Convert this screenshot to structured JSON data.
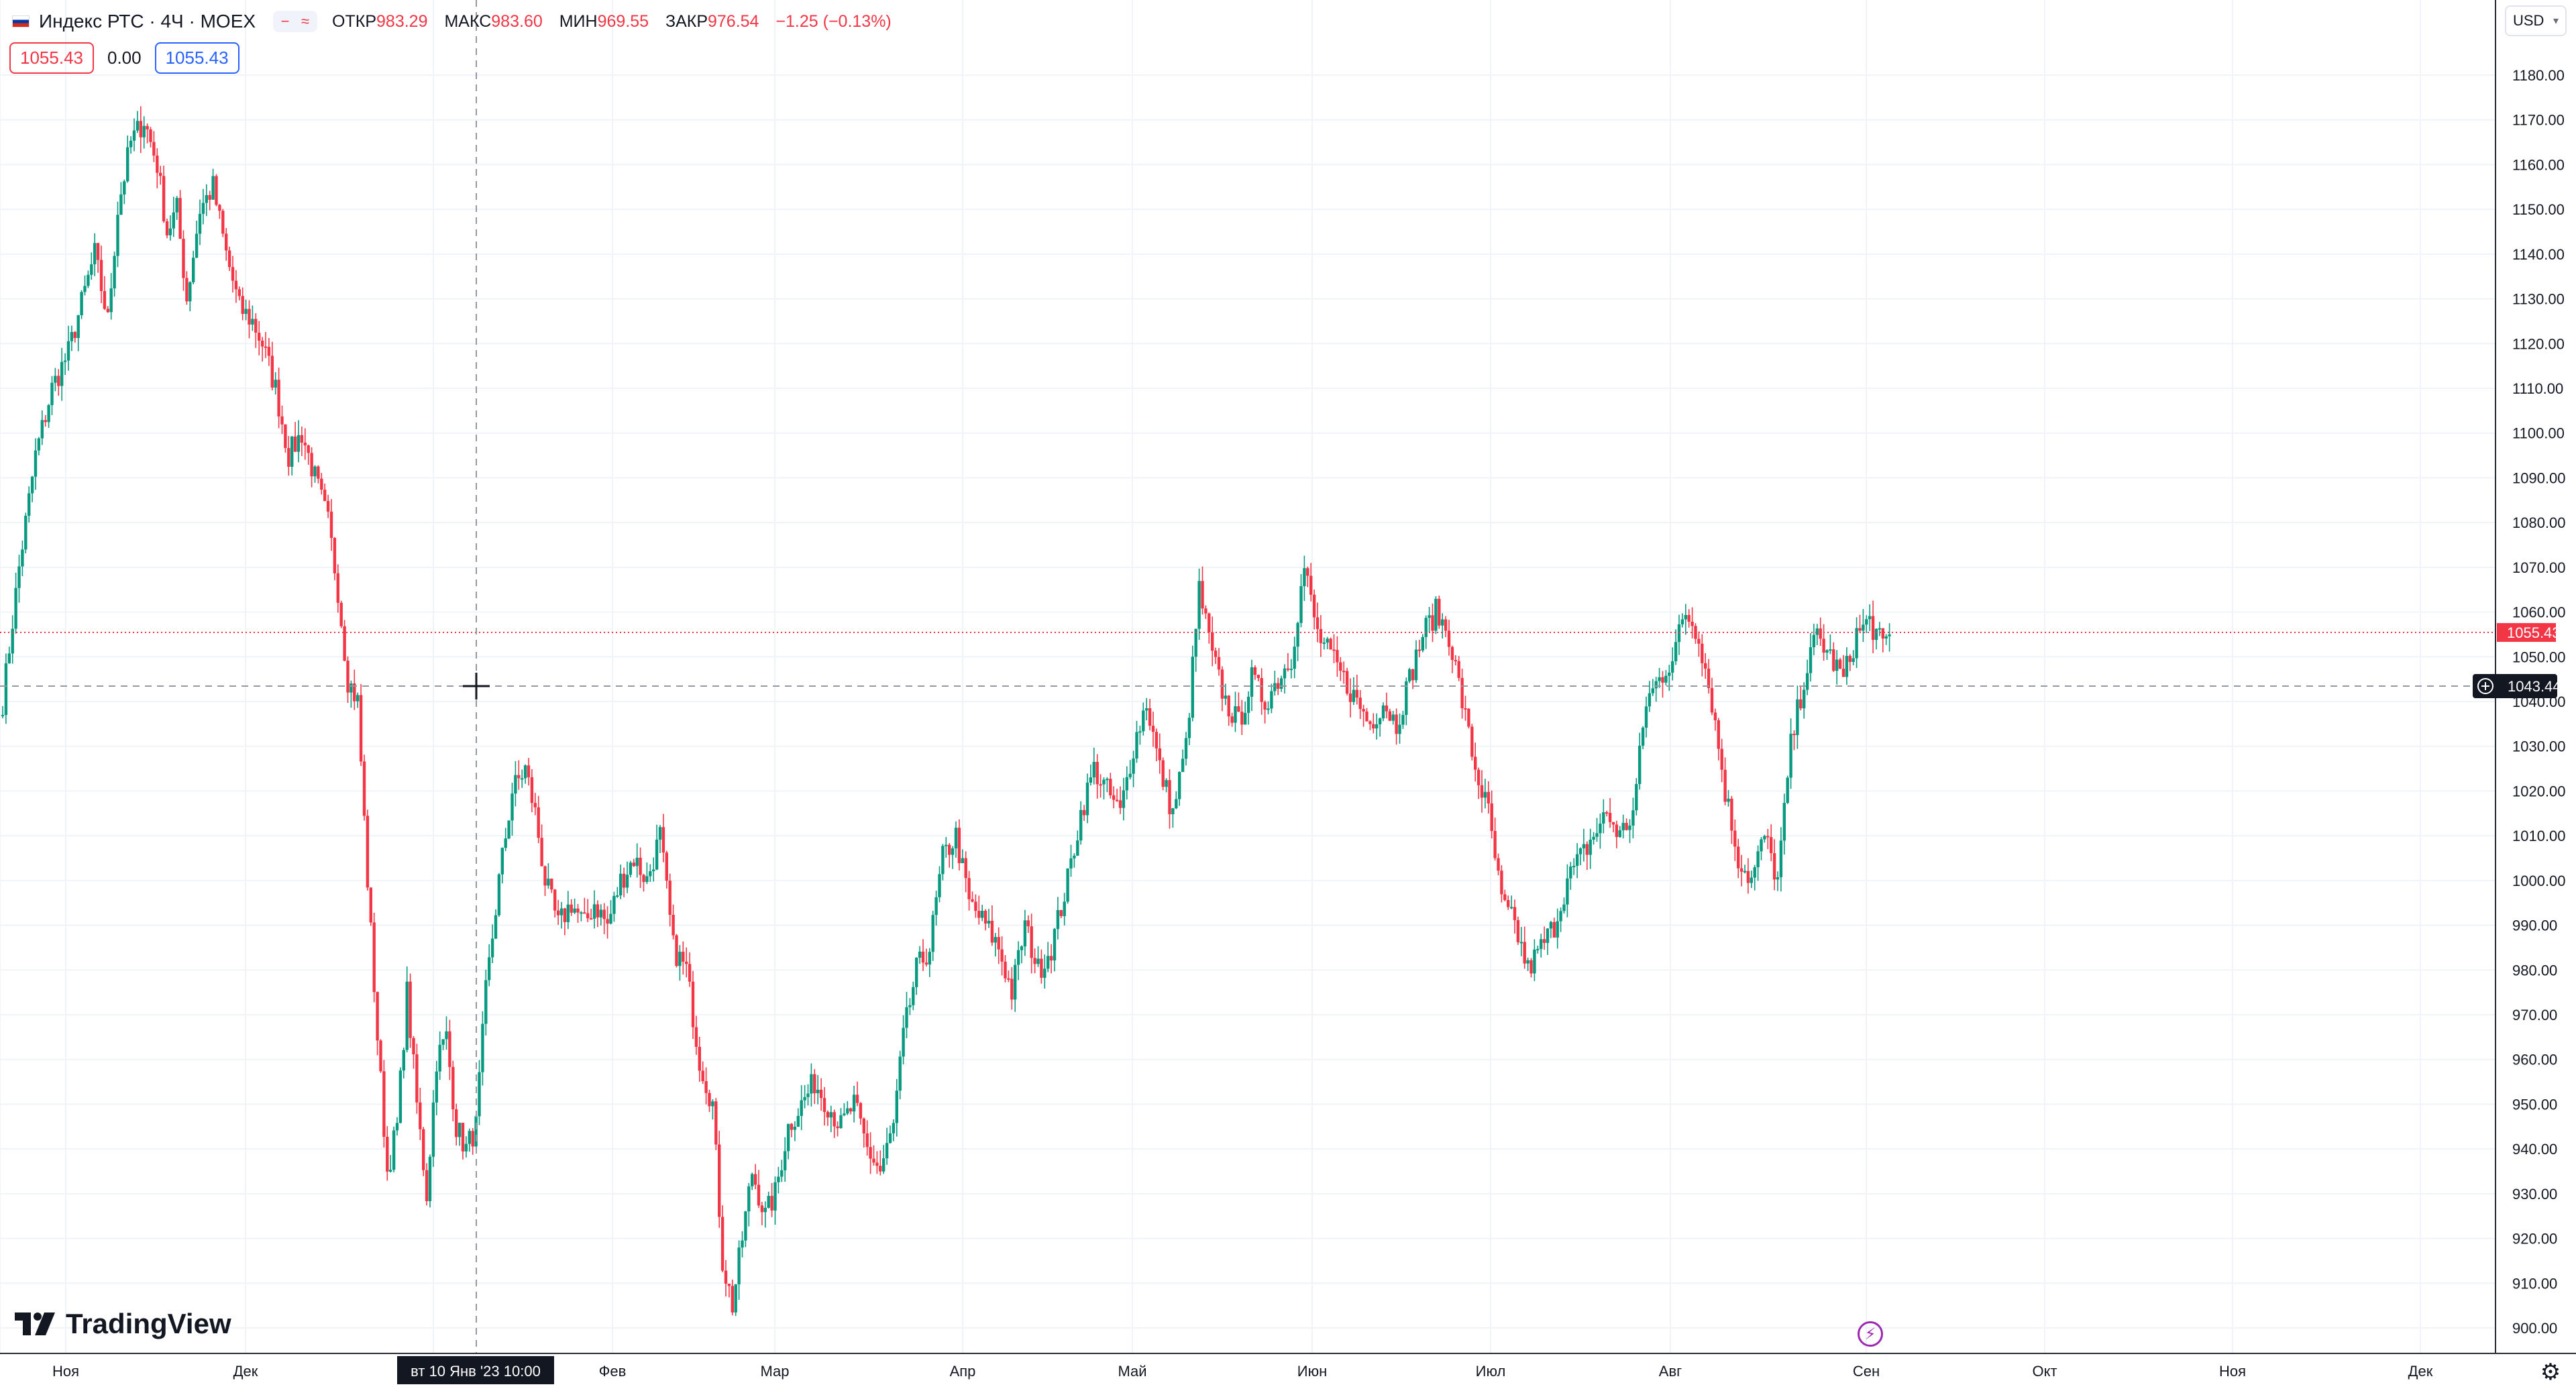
{
  "legend": {
    "symbol": "Индекс РТС · 4Ч · MOEX",
    "open_label": "ОТКР",
    "open": "983.29",
    "high_label": "МАКС",
    "high": "983.60",
    "low_label": "МИН",
    "low": "969.55",
    "close_label": "ЗАКР",
    "close": "976.54",
    "change": "−1.25 (−0.13%)",
    "buttons": [
      "−",
      "≈"
    ]
  },
  "badges": {
    "sell": "1055.43",
    "spread": "0.00",
    "buy": "1055.43"
  },
  "currency": "USD",
  "logo_text": "TradingView",
  "colors": {
    "up": "#089981",
    "down": "#f23645",
    "grid": "#f0f3fa",
    "crosshair": "#9598a1",
    "last_price": "#f23645"
  },
  "crosshair": {
    "price_label": "1043.44",
    "time_label": "вт 10 Янв '23   10:00"
  },
  "chart_data": {
    "type": "candlestick",
    "title": "Индекс РТС · 4Ч · MOEX",
    "ylim": [
      895,
      1185
    ],
    "y_ticks": [
      900,
      910,
      920,
      930,
      940,
      950,
      960,
      970,
      980,
      990,
      1000,
      1010,
      1020,
      1030,
      1040,
      1050,
      1060,
      1070,
      1080,
      1090,
      1100,
      1110,
      1120,
      1130,
      1140,
      1150,
      1160,
      1170,
      1180
    ],
    "x_ticks": [
      "Ноя",
      "Дек",
      "Янв",
      "Фев",
      "Мар",
      "Апр",
      "Май",
      "Июн",
      "Июл",
      "Авг",
      "Сен",
      "Окт",
      "Ноя",
      "Дек"
    ],
    "last_price": 1055.43,
    "crosshair_price": 1043.44,
    "grid": true,
    "close_path": [
      [
        0,
        1040
      ],
      [
        10,
        1070
      ],
      [
        20,
        1095
      ],
      [
        30,
        1110
      ],
      [
        40,
        1118
      ],
      [
        55,
        1140
      ],
      [
        62,
        1125
      ],
      [
        68,
        1150
      ],
      [
        75,
        1165
      ],
      [
        82,
        1170
      ],
      [
        90,
        1160
      ],
      [
        96,
        1145
      ],
      [
        102,
        1150
      ],
      [
        108,
        1130
      ],
      [
        115,
        1150
      ],
      [
        122,
        1155
      ],
      [
        130,
        1140
      ],
      [
        138,
        1128
      ],
      [
        146,
        1125
      ],
      [
        152,
        1120
      ],
      [
        160,
        1110
      ],
      [
        168,
        1095
      ],
      [
        176,
        1100
      ],
      [
        184,
        1090
      ],
      [
        192,
        1080
      ],
      [
        198,
        1065
      ],
      [
        204,
        1045
      ],
      [
        210,
        1040
      ],
      [
        216,
        1000
      ],
      [
        222,
        965
      ],
      [
        228,
        935
      ],
      [
        234,
        945
      ],
      [
        240,
        975
      ],
      [
        246,
        950
      ],
      [
        252,
        930
      ],
      [
        258,
        960
      ],
      [
        264,
        965
      ],
      [
        270,
        945
      ],
      [
        276,
        940
      ],
      [
        282,
        945
      ],
      [
        288,
        975
      ],
      [
        295,
        1000
      ],
      [
        302,
        1020
      ],
      [
        310,
        1025
      ],
      [
        316,
        1015
      ],
      [
        322,
        1000
      ],
      [
        330,
        990
      ],
      [
        338,
        995
      ],
      [
        346,
        990
      ],
      [
        352,
        995
      ],
      [
        360,
        990
      ],
      [
        368,
        1000
      ],
      [
        376,
        1005
      ],
      [
        384,
        1000
      ],
      [
        392,
        1010
      ],
      [
        400,
        985
      ],
      [
        408,
        980
      ],
      [
        416,
        960
      ],
      [
        424,
        950
      ],
      [
        430,
        915
      ],
      [
        436,
        905
      ],
      [
        442,
        920
      ],
      [
        448,
        935
      ],
      [
        456,
        925
      ],
      [
        462,
        930
      ],
      [
        470,
        945
      ],
      [
        478,
        950
      ],
      [
        486,
        955
      ],
      [
        494,
        950
      ],
      [
        502,
        945
      ],
      [
        510,
        950
      ],
      [
        518,
        940
      ],
      [
        526,
        935
      ],
      [
        534,
        945
      ],
      [
        540,
        965
      ],
      [
        548,
        980
      ],
      [
        556,
        985
      ],
      [
        564,
        1005
      ],
      [
        572,
        1010
      ],
      [
        580,
        995
      ],
      [
        590,
        990
      ],
      [
        598,
        985
      ],
      [
        606,
        975
      ],
      [
        614,
        990
      ],
      [
        622,
        980
      ],
      [
        630,
        985
      ],
      [
        640,
        1000
      ],
      [
        648,
        1015
      ],
      [
        656,
        1025
      ],
      [
        664,
        1020
      ],
      [
        672,
        1015
      ],
      [
        680,
        1030
      ],
      [
        688,
        1040
      ],
      [
        696,
        1025
      ],
      [
        704,
        1015
      ],
      [
        712,
        1030
      ],
      [
        720,
        1065
      ],
      [
        728,
        1050
      ],
      [
        736,
        1040
      ],
      [
        744,
        1035
      ],
      [
        752,
        1045
      ],
      [
        760,
        1040
      ],
      [
        768,
        1045
      ],
      [
        776,
        1050
      ],
      [
        784,
        1070
      ],
      [
        792,
        1055
      ],
      [
        800,
        1050
      ],
      [
        808,
        1045
      ],
      [
        816,
        1040
      ],
      [
        824,
        1035
      ],
      [
        832,
        1040
      ],
      [
        840,
        1035
      ],
      [
        848,
        1045
      ],
      [
        856,
        1055
      ],
      [
        864,
        1060
      ],
      [
        872,
        1055
      ],
      [
        880,
        1040
      ],
      [
        888,
        1025
      ],
      [
        896,
        1015
      ],
      [
        904,
        995
      ],
      [
        912,
        990
      ],
      [
        920,
        980
      ],
      [
        928,
        985
      ],
      [
        936,
        990
      ],
      [
        944,
        1000
      ],
      [
        952,
        1005
      ],
      [
        960,
        1010
      ],
      [
        968,
        1015
      ],
      [
        976,
        1010
      ],
      [
        984,
        1015
      ],
      [
        992,
        1040
      ],
      [
        1000,
        1045
      ],
      [
        1008,
        1050
      ],
      [
        1016,
        1060
      ],
      [
        1024,
        1055
      ],
      [
        1032,
        1040
      ],
      [
        1040,
        1020
      ],
      [
        1048,
        1005
      ],
      [
        1056,
        1000
      ],
      [
        1064,
        1010
      ],
      [
        1072,
        1000
      ],
      [
        1080,
        1030
      ],
      [
        1088,
        1045
      ],
      [
        1096,
        1055
      ],
      [
        1104,
        1050
      ],
      [
        1112,
        1045
      ],
      [
        1120,
        1055
      ],
      [
        1128,
        1058
      ],
      [
        1136,
        1052
      ],
      [
        1140,
        1055
      ]
    ]
  }
}
